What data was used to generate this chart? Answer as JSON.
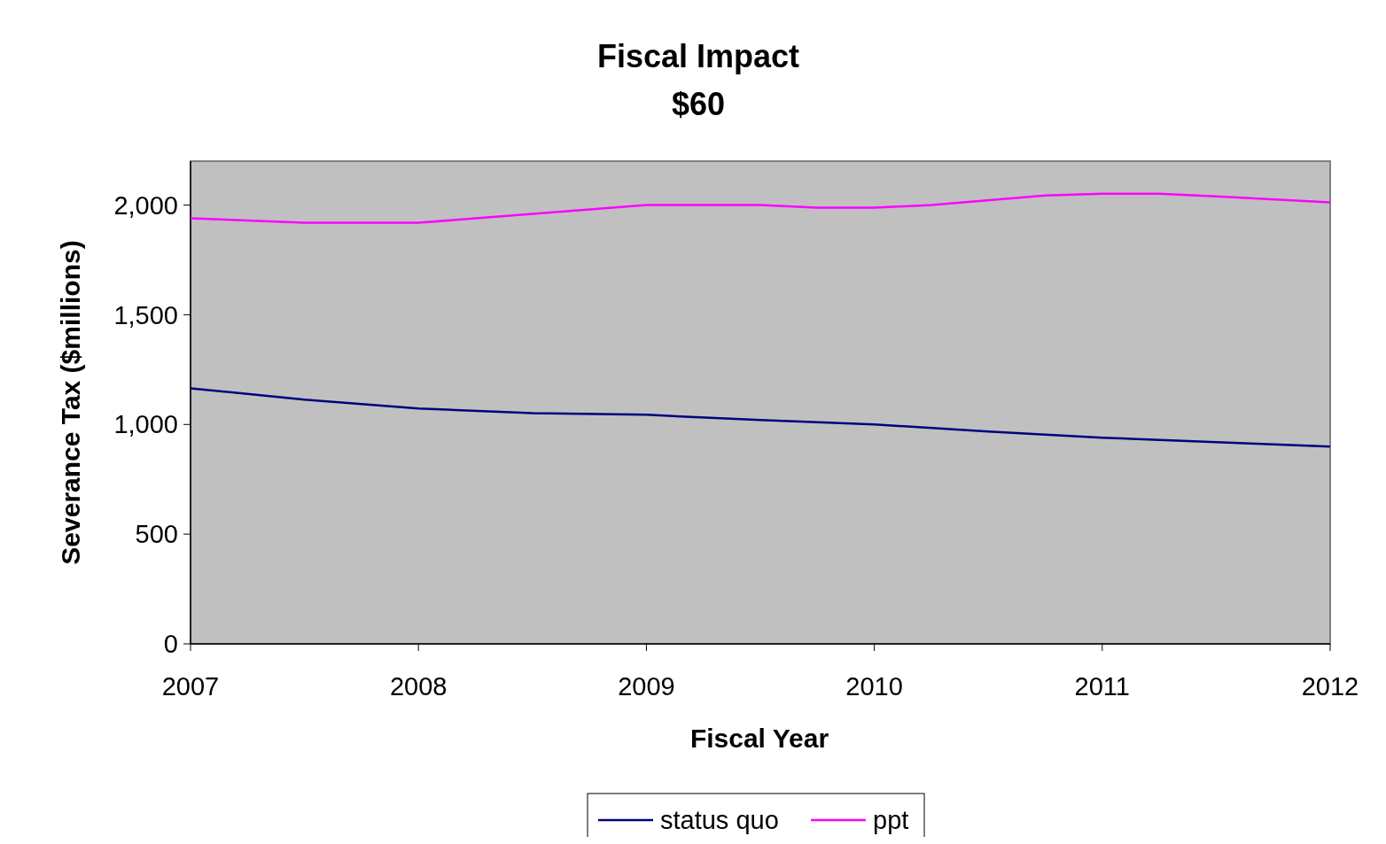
{
  "chart_data": {
    "type": "line",
    "title": "Fiscal Impact",
    "subtitle": "$60",
    "xlabel": "Fiscal Year",
    "ylabel": "Severance Tax ($millions)",
    "xlim": [
      2007,
      2012
    ],
    "xticks": [
      2007,
      2008,
      2009,
      2010,
      2011,
      2012
    ],
    "ylim": [
      0,
      2200
    ],
    "yticks": [
      {
        "value": 0,
        "label": "0"
      },
      {
        "value": 500,
        "label": "500"
      },
      {
        "value": 1000,
        "label": "1,000"
      },
      {
        "value": 1500,
        "label": "1,500"
      },
      {
        "value": 2000,
        "label": "2,000"
      }
    ],
    "grid": false,
    "legend": "bottom",
    "line_style": "solid",
    "series": [
      {
        "name": "status quo",
        "color": "#000080",
        "x": [
          2007,
          2007.5,
          2008,
          2008.5,
          2009,
          2009.5,
          2010,
          2010.5,
          2011,
          2011.5,
          2012
        ],
        "values": [
          1165,
          1113,
          1073,
          1052,
          1044,
          1020,
          1000,
          968,
          940,
          919,
          899
        ]
      },
      {
        "name": "ppt",
        "color": "#ff00ff",
        "x": [
          2007,
          2007.5,
          2008,
          2008.5,
          2009,
          2009.5,
          2009.75,
          2010,
          2010.25,
          2010.75,
          2011,
          2011.25,
          2011.5,
          2012
        ],
        "values": [
          1940,
          1919,
          1919,
          1960,
          2000,
          2000,
          1988,
          1988,
          2000,
          2044,
          2052,
          2052,
          2040,
          2012
        ]
      }
    ]
  }
}
